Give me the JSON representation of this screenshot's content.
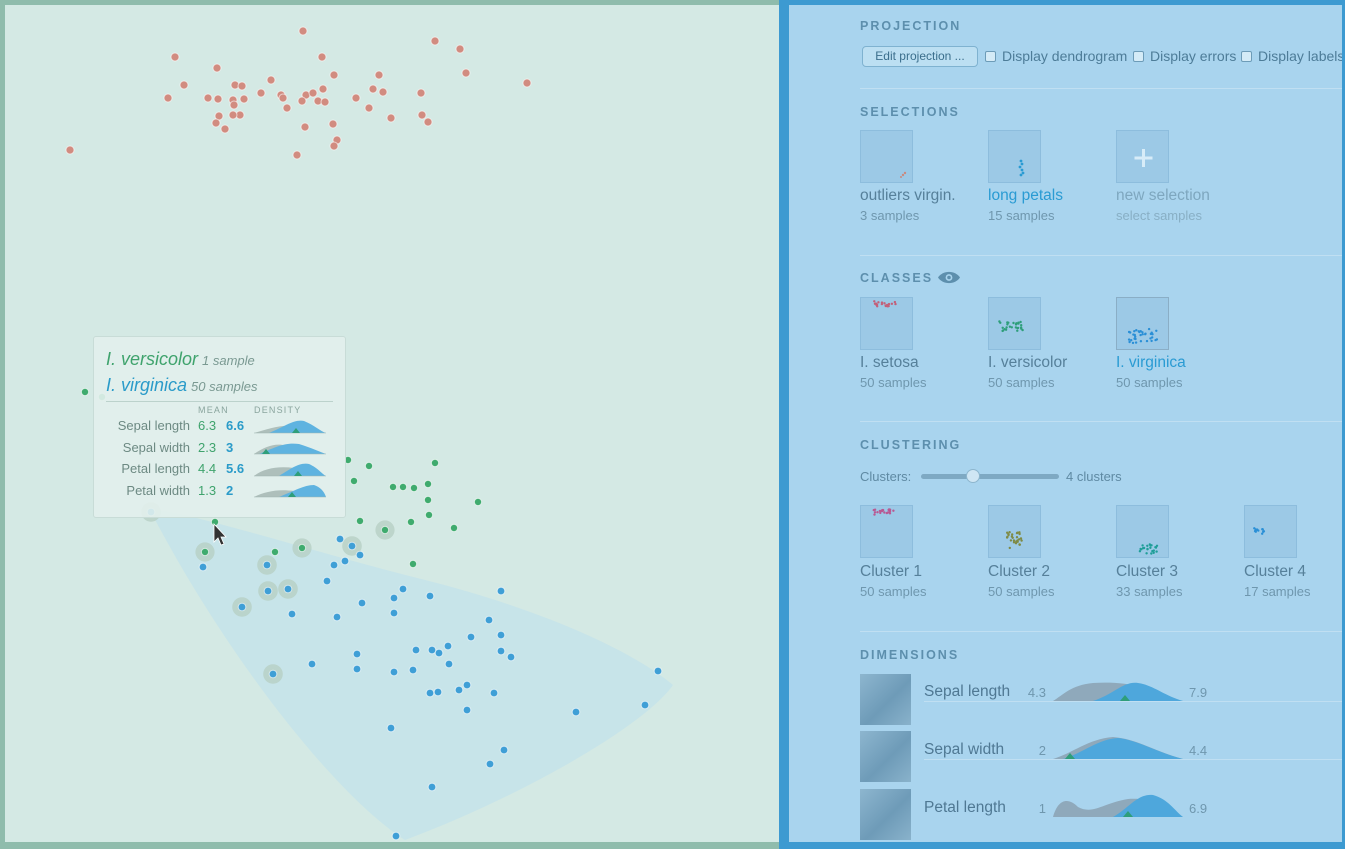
{
  "tooltip": {
    "classes": [
      {
        "name": "I. versicolor",
        "count": "1 sample"
      },
      {
        "name": "I. virginica",
        "count": "50 samples"
      }
    ],
    "col_mean": "MEAN",
    "col_density": "DENSITY",
    "rows": [
      {
        "label": "Sepal length",
        "v1": "6.3",
        "v2": "6.6"
      },
      {
        "label": "Sepal width",
        "v1": "2.3",
        "v2": "3"
      },
      {
        "label": "Petal length",
        "v1": "4.4",
        "v2": "5.6"
      },
      {
        "label": "Petal width",
        "v1": "1.3",
        "v2": "2"
      }
    ]
  },
  "projection": {
    "title": "PROJECTION",
    "edit_button": "Edit projection ...",
    "options": [
      {
        "label": "Display dendrogram",
        "checked": false
      },
      {
        "label": "Display errors",
        "checked": false
      },
      {
        "label": "Display labels",
        "checked": false
      }
    ]
  },
  "selections": {
    "title": "SELECTIONS",
    "items": [
      {
        "name": "outliers virgin.",
        "sub": "3 samples",
        "color": "#c98a80"
      },
      {
        "name": "long petals",
        "sub": "15 samples",
        "color": "#2a9bd3"
      },
      {
        "name": "new selection",
        "sub": "select samples",
        "color": "#7aa7c2"
      }
    ]
  },
  "classes": {
    "title": "CLASSES",
    "items": [
      {
        "name": "I. setosa",
        "sub": "50 samples",
        "color": "#c2607a"
      },
      {
        "name": "I. versicolor",
        "sub": "50 samples",
        "color": "#2e9e7a"
      },
      {
        "name": "I. virginica",
        "sub": "50 samples",
        "color": "#2a8fd6"
      }
    ]
  },
  "clustering": {
    "title": "CLUSTERING",
    "label": "Clusters:",
    "value": "4 clusters",
    "items": [
      {
        "name": "Cluster 1",
        "sub": "50 samples",
        "color": "#b85a93"
      },
      {
        "name": "Cluster 2",
        "sub": "50 samples",
        "color": "#7e8a45"
      },
      {
        "name": "Cluster 3",
        "sub": "33 samples",
        "color": "#1f9e98"
      },
      {
        "name": "Cluster 4",
        "sub": "17 samples",
        "color": "#2a8fd6"
      }
    ]
  },
  "dimensions": {
    "title": "DIMENSIONS",
    "items": [
      {
        "name": "Sepal length",
        "min": "4.3",
        "max": "7.9"
      },
      {
        "name": "Sepal width",
        "min": "2",
        "max": "4.4"
      },
      {
        "name": "Petal length",
        "min": "1",
        "max": "6.9"
      }
    ]
  },
  "colors": {
    "setosa": "#d18c80",
    "versicolor": "#3fab6e",
    "virginica": "#3f9fd6",
    "sidebar_border": "#3d9ad1"
  }
}
